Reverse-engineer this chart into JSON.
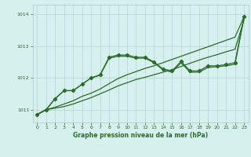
{
  "bg_color": "#d6f0ee",
  "grid_color": "#b0c8c8",
  "line_color": "#2d6a2d",
  "marker_color": "#2d6a2d",
  "title": "Graphe pression niveau de la mer (hPa)",
  "title_color": "#2d6a2d",
  "xlim": [
    -0.5,
    23.5
  ],
  "ylim": [
    1010.6,
    1014.3
  ],
  "yticks": [
    1011,
    1012,
    1013,
    1014
  ],
  "xticks": [
    0,
    1,
    2,
    3,
    4,
    5,
    6,
    7,
    8,
    9,
    10,
    11,
    12,
    13,
    14,
    15,
    16,
    17,
    18,
    19,
    20,
    21,
    22,
    23
  ],
  "y_main": [
    1010.85,
    1011.0,
    1011.35,
    1011.6,
    1011.6,
    1011.8,
    1012.0,
    1012.1,
    1012.65,
    1012.72,
    1012.72,
    1012.65,
    1012.65,
    1012.5,
    1012.28,
    1012.22,
    1012.52,
    1012.22,
    1012.22,
    1012.38,
    1012.38,
    1012.42,
    1012.48,
    1013.92
  ],
  "y_upper": [
    1010.85,
    1011.0,
    1011.08,
    1011.18,
    1011.28,
    1011.42,
    1011.52,
    1011.65,
    1011.82,
    1011.98,
    1012.1,
    1012.2,
    1012.3,
    1012.38,
    1012.48,
    1012.58,
    1012.68,
    1012.78,
    1012.88,
    1012.98,
    1013.08,
    1013.18,
    1013.28,
    1013.92
  ],
  "y_lower": [
    1010.85,
    1011.0,
    1011.05,
    1011.1,
    1011.18,
    1011.28,
    1011.38,
    1011.5,
    1011.62,
    1011.75,
    1011.85,
    1011.95,
    1012.02,
    1012.1,
    1012.18,
    1012.26,
    1012.36,
    1012.46,
    1012.56,
    1012.65,
    1012.73,
    1012.82,
    1012.9,
    1013.82
  ],
  "y_second": [
    1010.85,
    1011.0,
    1011.35,
    1011.6,
    1011.6,
    1011.8,
    1012.0,
    1012.08,
    1012.62,
    1012.68,
    1012.68,
    1012.62,
    1012.62,
    1012.48,
    1012.25,
    1012.18,
    1012.48,
    1012.18,
    1012.18,
    1012.33,
    1012.35,
    1012.38,
    1012.43,
    1013.88
  ]
}
